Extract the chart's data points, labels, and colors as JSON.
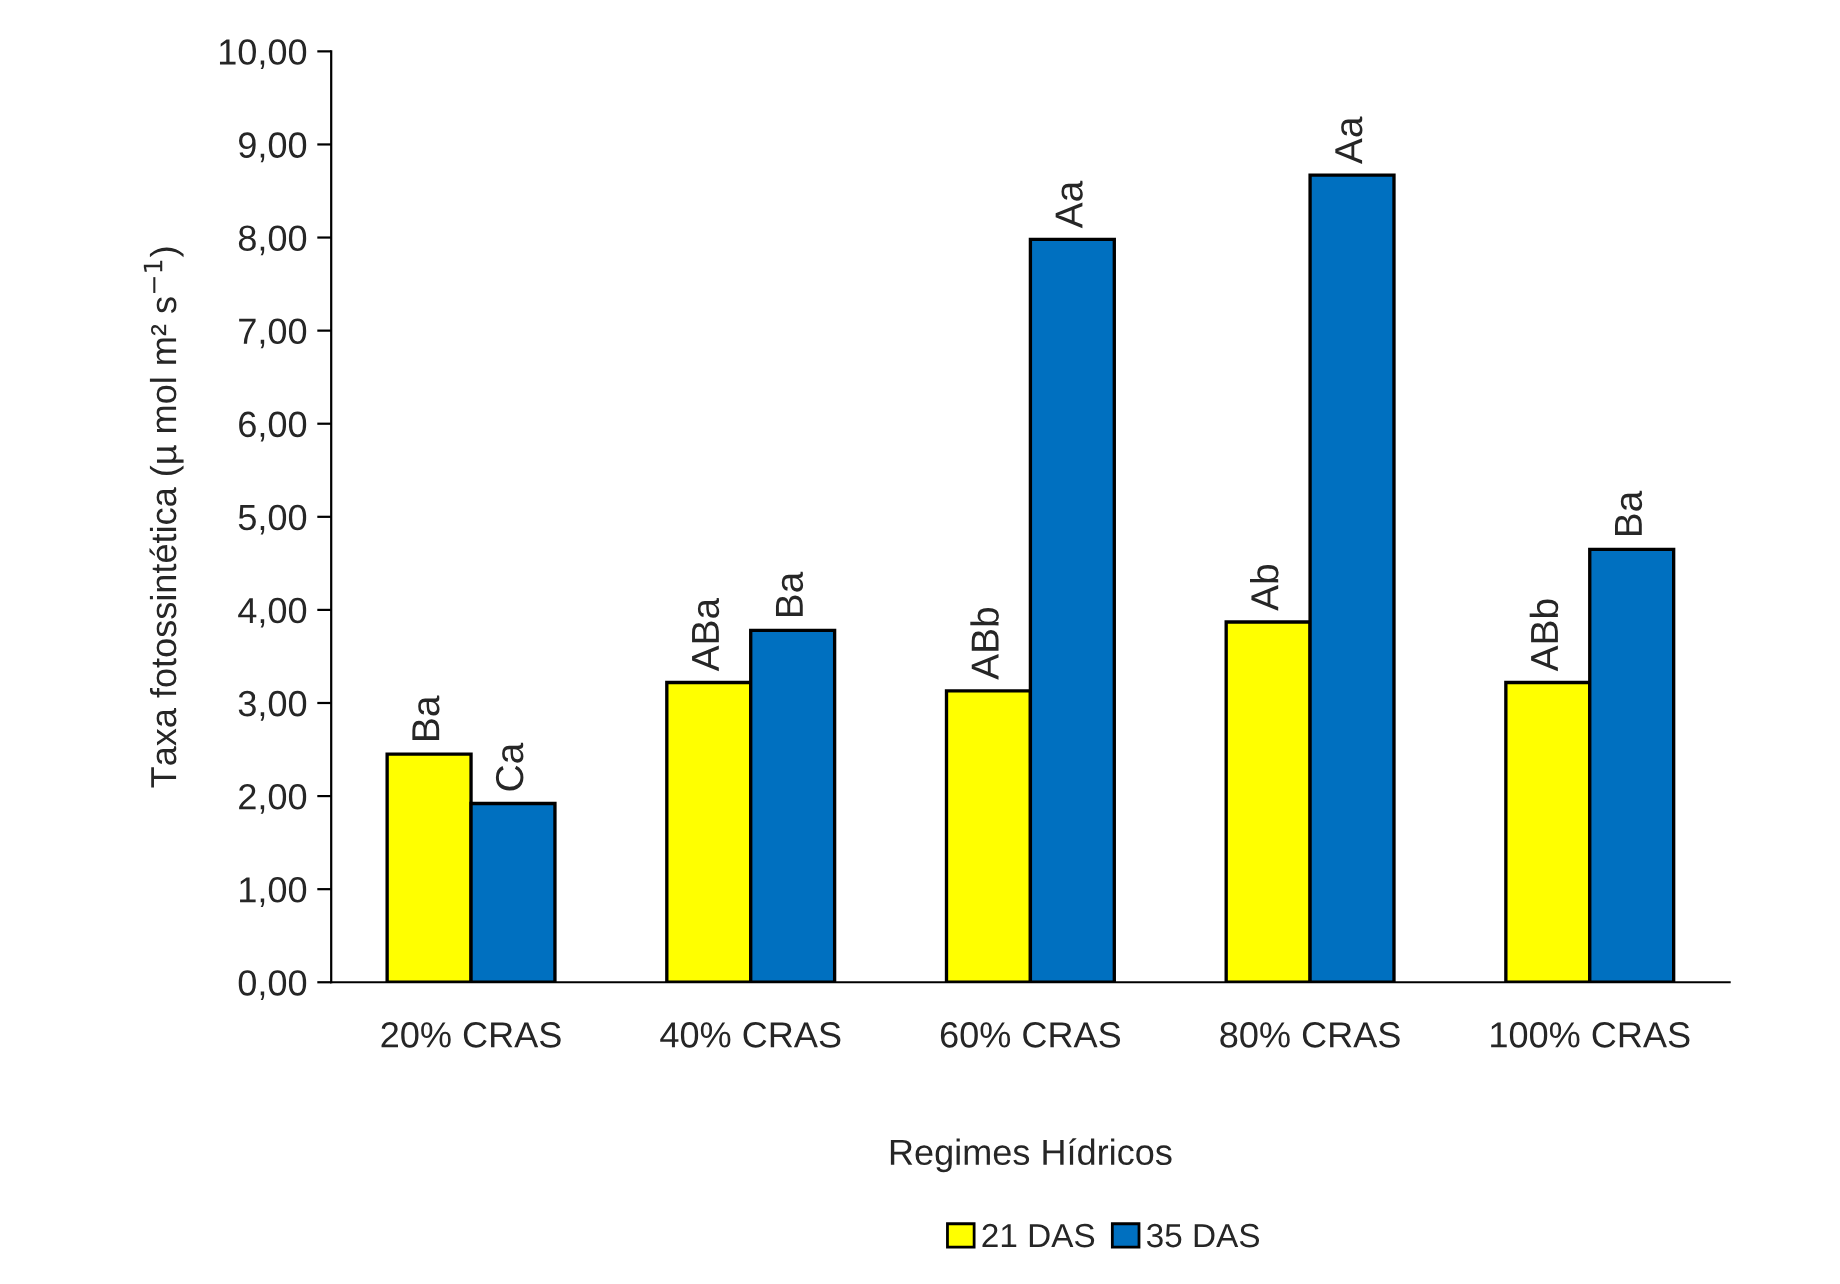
{
  "chart_data": {
    "type": "bar",
    "xlabel": "Regimes Hídricos",
    "ylabel": "Taxa fotossintética (µ mol m² s$^{−1}$)",
    "categories": [
      "20% CRAS",
      "40% CRAS",
      "60% CRAS",
      "80% CRAS",
      "100% CRAS"
    ],
    "series": [
      {
        "name": "21 DAS",
        "color": "#ffff00",
        "values": [
          2.45,
          3.22,
          3.13,
          3.87,
          3.22
        ],
        "value_labels": [
          "Ba",
          "ABa",
          "ABb",
          "Ab",
          "ABb"
        ]
      },
      {
        "name": "35 DAS",
        "color": "#0070c0",
        "values": [
          1.92,
          3.78,
          7.98,
          8.67,
          4.65
        ],
        "value_labels": [
          "Ca",
          "Ba",
          "Aa",
          "Aa",
          "Ba"
        ]
      }
    ],
    "ylim": [
      0,
      10
    ],
    "yticks": [
      {
        "value": 0,
        "label": "0,00"
      },
      {
        "value": 1,
        "label": "1,00"
      },
      {
        "value": 2,
        "label": "2,00"
      },
      {
        "value": 3,
        "label": "3,00"
      },
      {
        "value": 4,
        "label": "4,00"
      },
      {
        "value": 5,
        "label": "5,00"
      },
      {
        "value": 6,
        "label": "6,00"
      },
      {
        "value": 7,
        "label": "7,00"
      },
      {
        "value": 8,
        "label": "8,00"
      },
      {
        "value": 9,
        "label": "9,00"
      },
      {
        "value": 10,
        "label": "10,00"
      }
    ],
    "grid": false,
    "legend": "bottom"
  }
}
